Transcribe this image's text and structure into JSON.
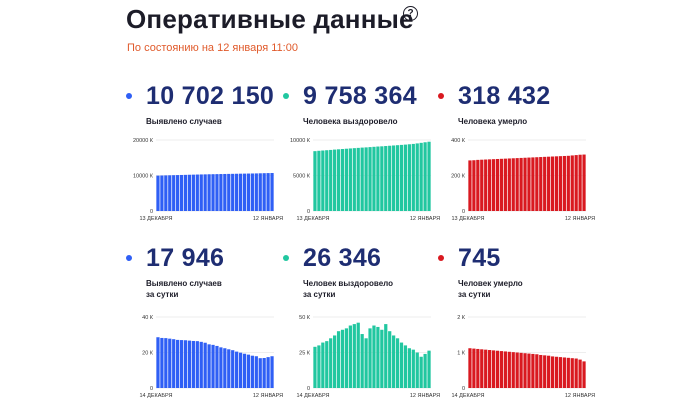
{
  "header": {
    "title": "Оперативные данные",
    "help_icon": "?",
    "subtitle": "По состоянию на 12 января 11:00"
  },
  "colors": {
    "blue": "#2f5ff5",
    "green": "#21c7a0",
    "red": "#d91920",
    "orange": "#e05a2b",
    "navy": "#1e2d72"
  },
  "cards": [
    {
      "value": "10 702 150",
      "label": "Выявлено случаев",
      "color": "#2f5ff5",
      "chart_data": {
        "type": "bar",
        "x_start_label": "13 ДЕКАБРЯ",
        "x_end_label": "12 ЯНВАРЯ",
        "yticks": [
          {
            "value": 0,
            "label": "0"
          },
          {
            "value": 10000,
            "label": "10000 К"
          },
          {
            "value": 20000,
            "label": "20000 К"
          }
        ],
        "ylim": [
          0,
          20000
        ],
        "values": [
          9970,
          10000,
          10030,
          10060,
          10090,
          10120,
          10150,
          10180,
          10210,
          10240,
          10270,
          10300,
          10320,
          10350,
          10370,
          10390,
          10410,
          10430,
          10450,
          10470,
          10490,
          10510,
          10530,
          10550,
          10570,
          10590,
          10620,
          10650,
          10680,
          10702
        ]
      }
    },
    {
      "value": "9 758 364",
      "label": "Человека выздоровело",
      "color": "#21c7a0",
      "chart_data": {
        "type": "bar",
        "x_start_label": "13 ДЕКАБРЯ",
        "x_end_label": "12 ЯНВАРЯ",
        "yticks": [
          {
            "value": 0,
            "label": "0"
          },
          {
            "value": 5000,
            "label": "5000 К"
          },
          {
            "value": 10000,
            "label": "10000 К"
          }
        ],
        "ylim": [
          0,
          10000
        ],
        "values": [
          8430,
          8480,
          8520,
          8560,
          8600,
          8650,
          8690,
          8730,
          8770,
          8810,
          8850,
          8890,
          8930,
          8960,
          9000,
          9040,
          9080,
          9110,
          9150,
          9190,
          9230,
          9270,
          9310,
          9350,
          9400,
          9450,
          9520,
          9600,
          9680,
          9758
        ]
      }
    },
    {
      "value": "318 432",
      "label": "Человека умерло",
      "color": "#d91920",
      "chart_data": {
        "type": "bar",
        "x_start_label": "13 ДЕКАБРЯ",
        "x_end_label": "12 ЯНВАРЯ",
        "yticks": [
          {
            "value": 0,
            "label": "0"
          },
          {
            "value": 200,
            "label": "200 К"
          },
          {
            "value": 400,
            "label": "400 К"
          }
        ],
        "ylim": [
          0,
          400
        ],
        "values": [
          285,
          286,
          288,
          289,
          290,
          291,
          292,
          293,
          294,
          295,
          296,
          297,
          298,
          299,
          300,
          301,
          302,
          303,
          304,
          305,
          306,
          307,
          308,
          309,
          310,
          311,
          313,
          315,
          317,
          318
        ]
      }
    },
    {
      "value": "17 946",
      "label": "Выявлено случаев\nза сутки",
      "color": "#2f5ff5",
      "chart_data": {
        "type": "bar",
        "x_start_label": "14 ДЕКАБРЯ",
        "x_end_label": "12 ЯНВАРЯ",
        "yticks": [
          {
            "value": 0,
            "label": "0"
          },
          {
            "value": 20,
            "label": "20 К"
          },
          {
            "value": 40,
            "label": "40 К"
          }
        ],
        "ylim": [
          0,
          40
        ],
        "values": [
          28.6,
          28.2,
          28.1,
          27.8,
          27.5,
          27.1,
          27.0,
          26.9,
          26.7,
          26.5,
          26.4,
          26.0,
          25.5,
          24.6,
          24.3,
          23.7,
          22.9,
          22.4,
          21.8,
          21.3,
          20.5,
          19.9,
          19.3,
          18.8,
          18.2,
          17.9,
          16.8,
          16.9,
          17.4,
          17.9
        ]
      }
    },
    {
      "value": "26 346",
      "label": "Человек выздоровело\nза сутки",
      "color": "#21c7a0",
      "chart_data": {
        "type": "bar",
        "x_start_label": "14 ДЕКАБРЯ",
        "x_end_label": "12 ЯНВАРЯ",
        "yticks": [
          {
            "value": 0,
            "label": "0"
          },
          {
            "value": 25,
            "label": "25 К"
          },
          {
            "value": 50,
            "label": "50 К"
          }
        ],
        "ylim": [
          0,
          50
        ],
        "values": [
          29,
          30,
          32,
          33,
          35,
          37,
          40,
          41,
          42,
          44,
          45,
          46,
          38,
          35,
          42,
          44,
          43,
          41,
          45,
          40,
          37,
          35,
          32,
          30,
          28,
          27,
          25,
          22,
          24,
          26.3
        ]
      }
    },
    {
      "value": "745",
      "label": "Человек умерло\nза сутки",
      "color": "#d91920",
      "chart_data": {
        "type": "bar",
        "x_start_label": "14 ДЕКАБРЯ",
        "x_end_label": "12 ЯНВАРЯ",
        "yticks": [
          {
            "value": 0,
            "label": "0"
          },
          {
            "value": 1,
            "label": "1 К"
          },
          {
            "value": 2,
            "label": "2 К"
          }
        ],
        "ylim": [
          0,
          2
        ],
        "values": [
          1.12,
          1.11,
          1.1,
          1.09,
          1.08,
          1.07,
          1.06,
          1.05,
          1.04,
          1.03,
          1.02,
          1.01,
          1.0,
          0.99,
          0.98,
          0.97,
          0.96,
          0.95,
          0.93,
          0.92,
          0.91,
          0.89,
          0.88,
          0.87,
          0.86,
          0.85,
          0.84,
          0.83,
          0.8,
          0.75
        ]
      }
    }
  ]
}
